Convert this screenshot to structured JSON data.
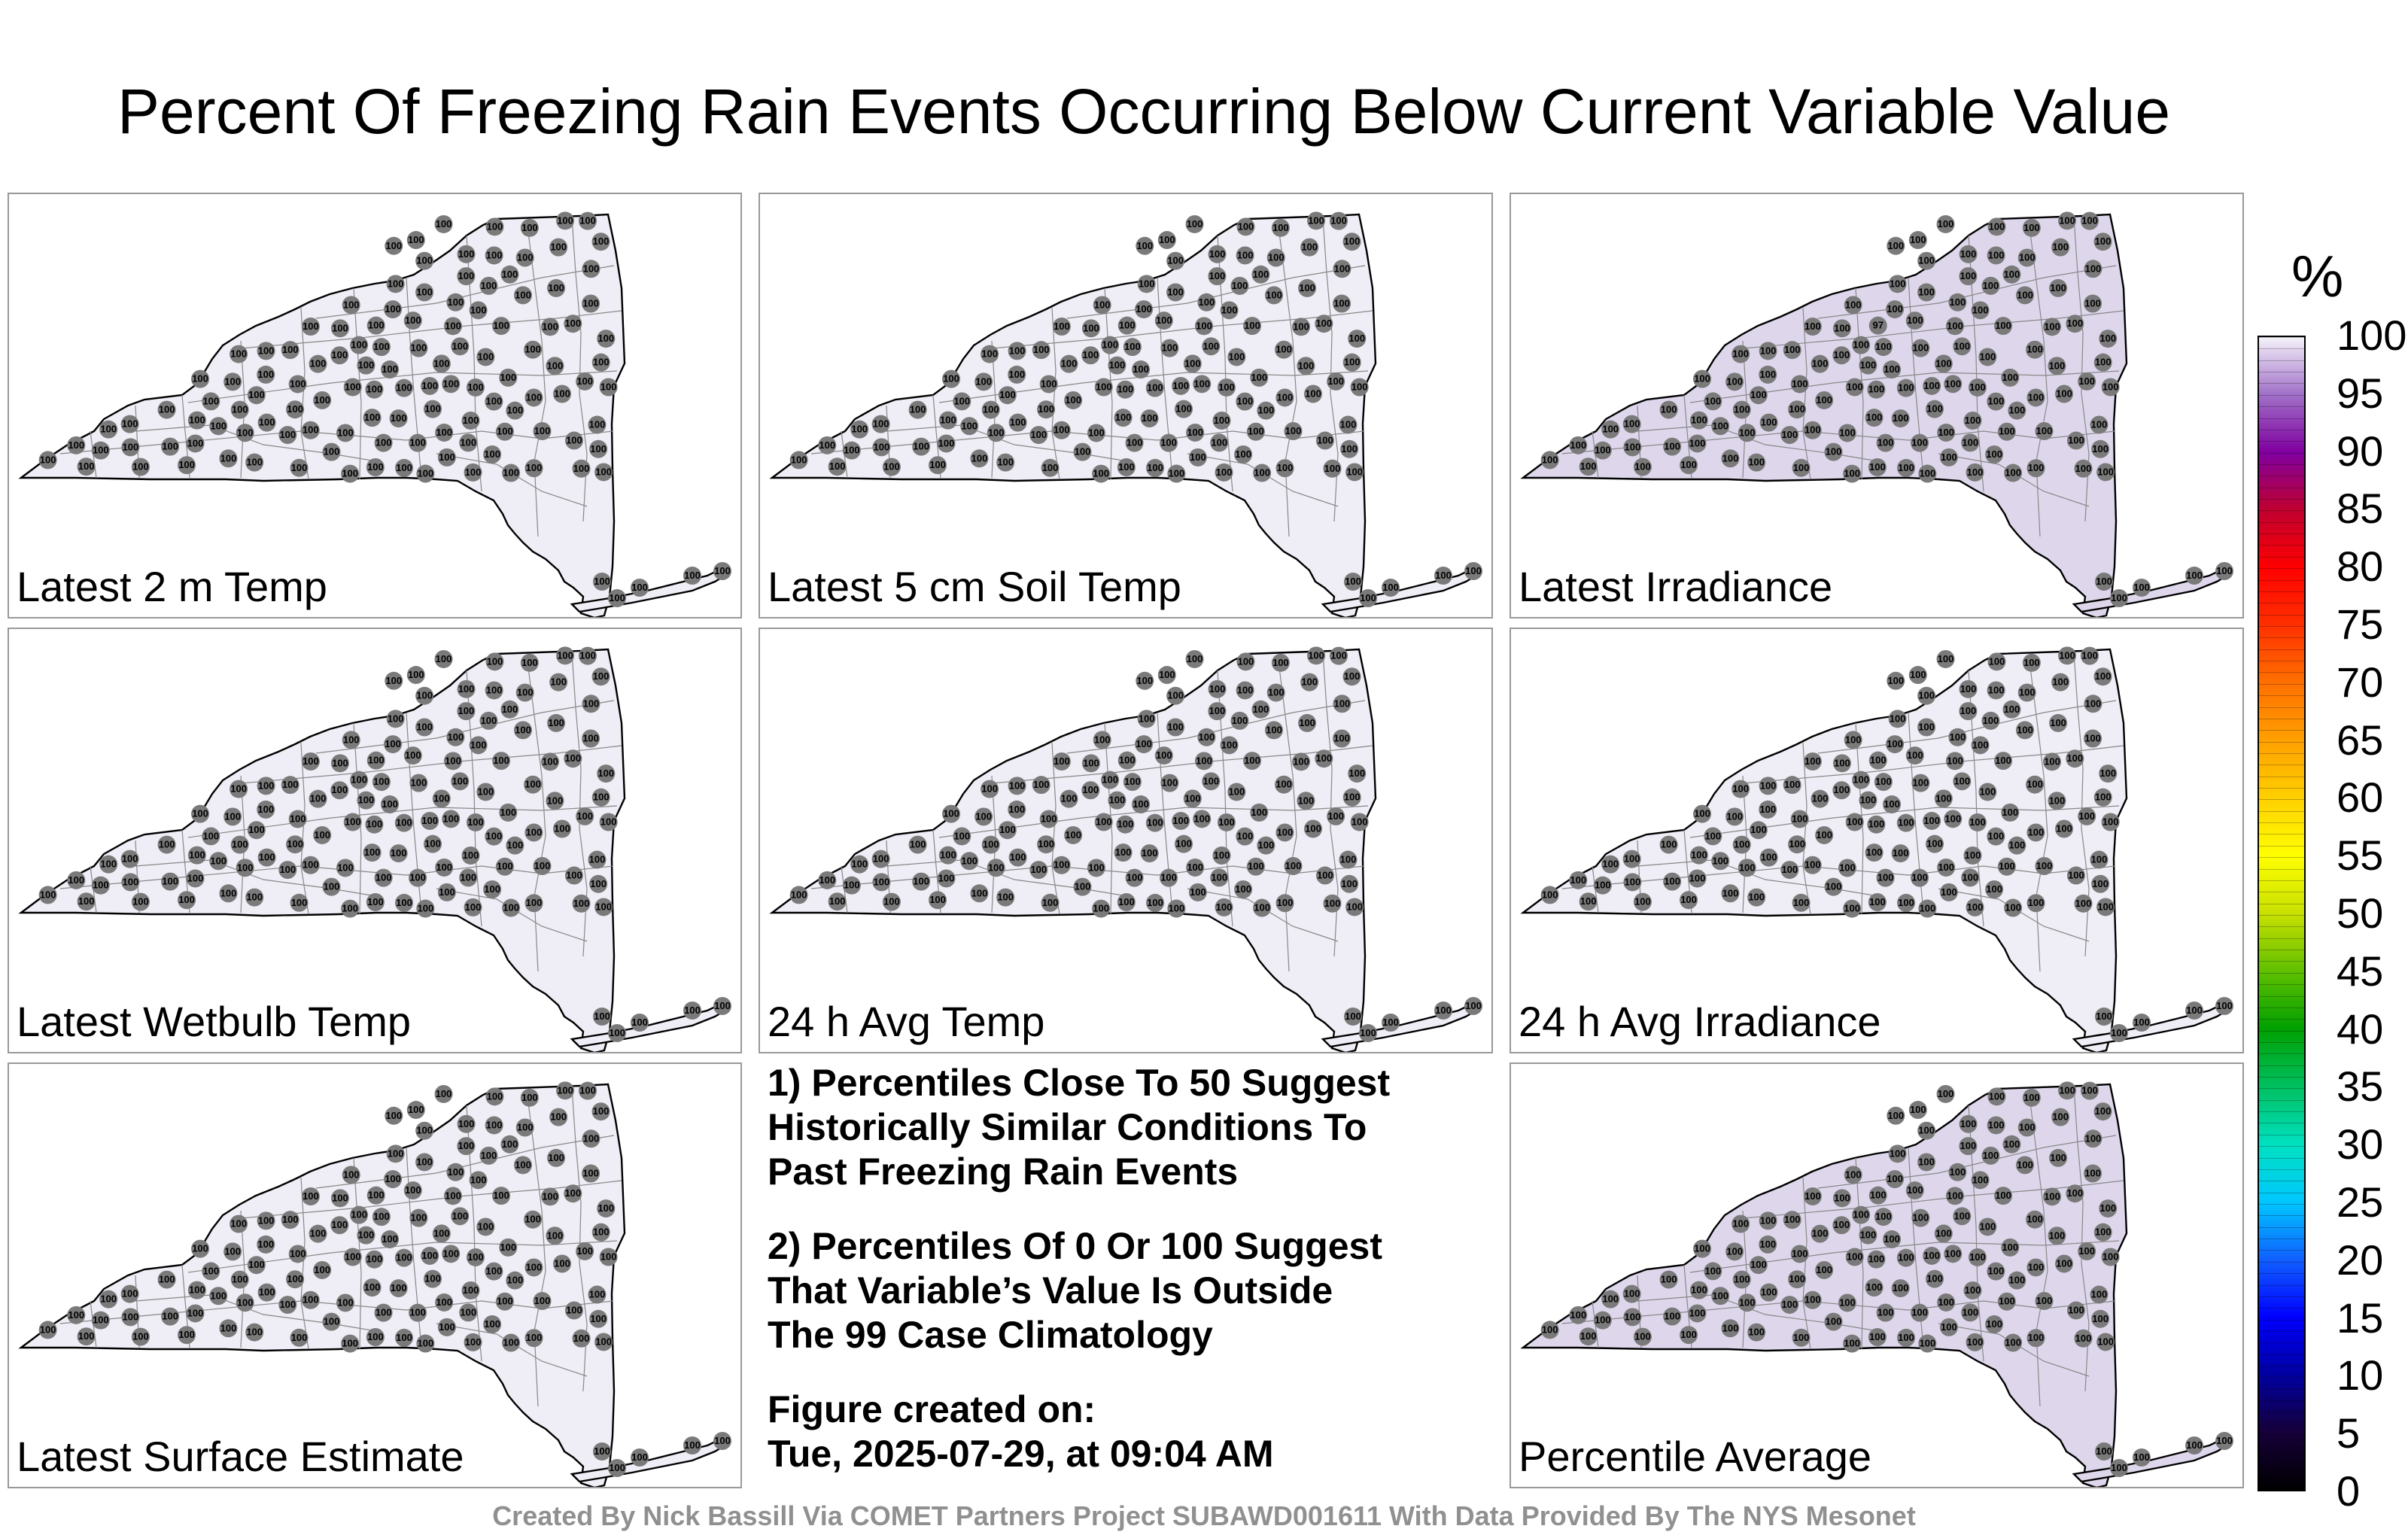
{
  "title": "Percent Of Freezing Rain Events Occurring Below Current Variable Value",
  "panels": [
    {
      "label": "Latest 2 m Temp",
      "fill": "#efedf5"
    },
    {
      "label": "Latest 5 cm Soil Temp",
      "fill": "#efedf5"
    },
    {
      "label": "Latest Irradiance",
      "fill": "#ded7ec",
      "special": "97"
    },
    {
      "label": "Latest Wetbulb Temp",
      "fill": "#efedf5"
    },
    {
      "label": "24 h Avg Temp",
      "fill": "#efedf5"
    },
    {
      "label": "24 h Avg Irradiance",
      "fill": "#efedf5"
    },
    {
      "label": "Latest Surface Estimate",
      "fill": "#efedf5"
    },
    {
      "label": "Percentile Average",
      "fill": "#ded7ec"
    }
  ],
  "station_value": "100",
  "notes": {
    "note1": "1) Percentiles Close To 50 Suggest\nHistorically Similar Conditions To\nPast Freezing Rain Events",
    "note2": "2) Percentiles Of 0 Or 100 Suggest\nThat Variable’s Value Is Outside\nThe 99 Case Climatology",
    "note3": "Figure created on:\nTue, 2025-07-29, at 09:04 AM"
  },
  "colorbar": {
    "unit": "%",
    "ticks": [
      "100",
      "95",
      "90",
      "85",
      "80",
      "75",
      "70",
      "65",
      "60",
      "55",
      "50",
      "45",
      "40",
      "35",
      "30",
      "25",
      "20",
      "15",
      "10",
      "5",
      "0"
    ]
  },
  "footer": "Created By Nick Bassill Via COMET Partners Project SUBAWD001611 With Data Provided By The NYS Mesonet"
}
